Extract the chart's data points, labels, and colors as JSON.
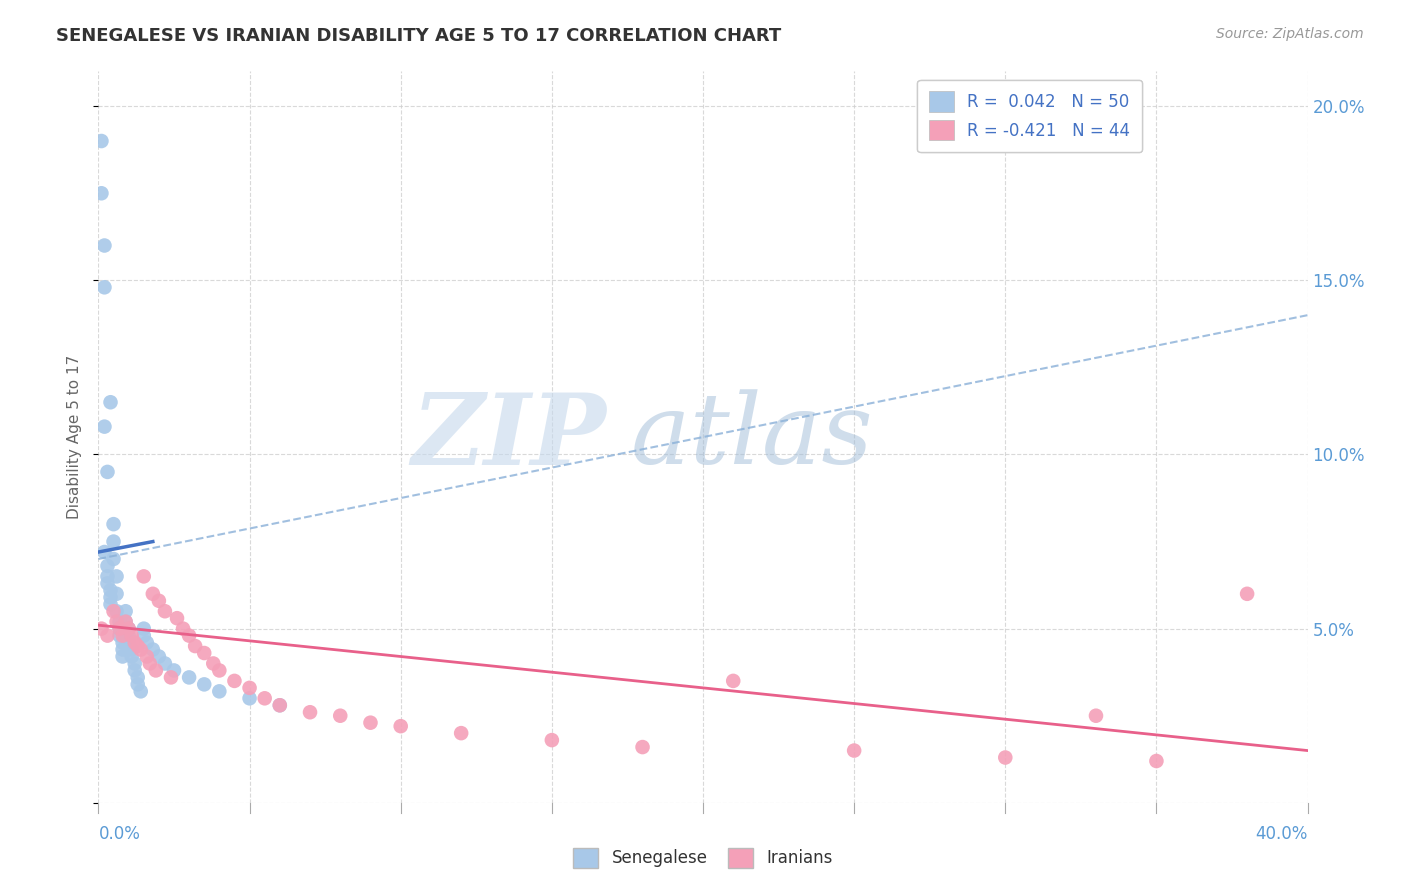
{
  "title": "SENEGALESE VS IRANIAN DISABILITY AGE 5 TO 17 CORRELATION CHART",
  "source": "Source: ZipAtlas.com",
  "ylabel_label": "Disability Age 5 to 17",
  "xlim": [
    0.0,
    0.4
  ],
  "ylim": [
    0.0,
    0.21
  ],
  "senegalese_color": "#a8c8e8",
  "iranian_color": "#f4a0b8",
  "senegalese_line_color": "#4472c4",
  "senegalese_dash_color": "#8ab0d8",
  "iranian_line_color": "#e8608a",
  "legend_r_sene": "R =  0.042",
  "legend_n_sene": "N = 50",
  "legend_r_iran": "R = -0.421",
  "legend_n_iran": "N = 44",
  "legend_text_color": "#4472c4",
  "watermark_line1": "ZIP",
  "watermark_line2": "atlas",
  "tick_color": "#5b9bd5",
  "ylabel_color": "#666666",
  "senegalese_x": [
    0.001,
    0.001,
    0.002,
    0.002,
    0.002,
    0.003,
    0.003,
    0.003,
    0.004,
    0.004,
    0.004,
    0.005,
    0.005,
    0.005,
    0.006,
    0.006,
    0.006,
    0.007,
    0.007,
    0.007,
    0.008,
    0.008,
    0.008,
    0.009,
    0.009,
    0.01,
    0.01,
    0.01,
    0.011,
    0.011,
    0.012,
    0.012,
    0.013,
    0.013,
    0.014,
    0.015,
    0.015,
    0.016,
    0.018,
    0.02,
    0.022,
    0.025,
    0.03,
    0.035,
    0.04,
    0.05,
    0.06,
    0.002,
    0.003,
    0.004
  ],
  "senegalese_y": [
    0.19,
    0.175,
    0.16,
    0.148,
    0.072,
    0.068,
    0.065,
    0.063,
    0.061,
    0.059,
    0.057,
    0.08,
    0.075,
    0.07,
    0.065,
    0.06,
    0.055,
    0.052,
    0.05,
    0.048,
    0.046,
    0.044,
    0.042,
    0.055,
    0.052,
    0.05,
    0.048,
    0.046,
    0.044,
    0.042,
    0.04,
    0.038,
    0.036,
    0.034,
    0.032,
    0.05,
    0.048,
    0.046,
    0.044,
    0.042,
    0.04,
    0.038,
    0.036,
    0.034,
    0.032,
    0.03,
    0.028,
    0.108,
    0.095,
    0.115
  ],
  "iranian_x": [
    0.001,
    0.003,
    0.005,
    0.006,
    0.007,
    0.008,
    0.009,
    0.01,
    0.011,
    0.012,
    0.013,
    0.014,
    0.015,
    0.016,
    0.017,
    0.018,
    0.019,
    0.02,
    0.022,
    0.024,
    0.026,
    0.028,
    0.03,
    0.032,
    0.035,
    0.038,
    0.04,
    0.045,
    0.05,
    0.055,
    0.06,
    0.07,
    0.08,
    0.09,
    0.1,
    0.12,
    0.15,
    0.18,
    0.21,
    0.25,
    0.3,
    0.33,
    0.35,
    0.38
  ],
  "iranian_y": [
    0.05,
    0.048,
    0.055,
    0.052,
    0.05,
    0.048,
    0.052,
    0.05,
    0.048,
    0.046,
    0.045,
    0.044,
    0.065,
    0.042,
    0.04,
    0.06,
    0.038,
    0.058,
    0.055,
    0.036,
    0.053,
    0.05,
    0.048,
    0.045,
    0.043,
    0.04,
    0.038,
    0.035,
    0.033,
    0.03,
    0.028,
    0.026,
    0.025,
    0.023,
    0.022,
    0.02,
    0.018,
    0.016,
    0.035,
    0.015,
    0.013,
    0.025,
    0.012,
    0.06
  ]
}
